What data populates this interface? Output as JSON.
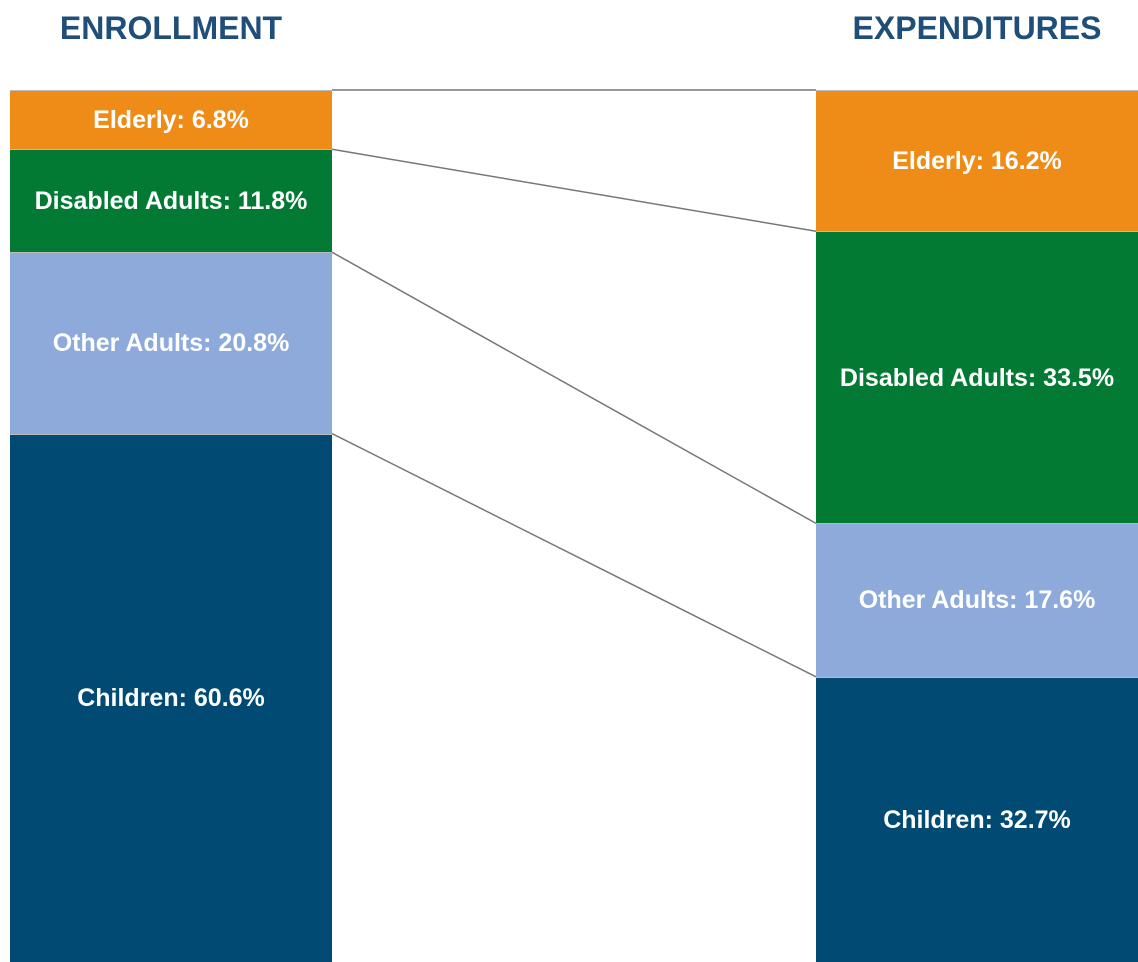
{
  "chart_data": {
    "type": "stacked-bar-100",
    "categories": [
      "ENROLLMENT",
      "EXPENDITURES"
    ],
    "series": [
      {
        "color": "#004a74",
        "values": [
          60.6,
          32.7
        ],
        "value_labels": [
          "Children: 60.6%",
          "Children: 32.7%"
        ]
      },
      {
        "color": "#8eaadb",
        "values": [
          20.8,
          17.6
        ],
        "value_labels": [
          "Other Adults: 20.8%",
          "Other Adults: 17.6%"
        ]
      },
      {
        "color": "#027a34",
        "values": [
          11.8,
          33.5
        ],
        "value_labels": [
          "Disabled Adults: 11.8%",
          "Disabled Adults: 33.5%"
        ]
      },
      {
        "color": "#ef8c17",
        "values": [
          6.8,
          16.2
        ],
        "value_labels": [
          "Elderly: 6.8%",
          "Elderly: 16.2%"
        ]
      }
    ]
  }
}
